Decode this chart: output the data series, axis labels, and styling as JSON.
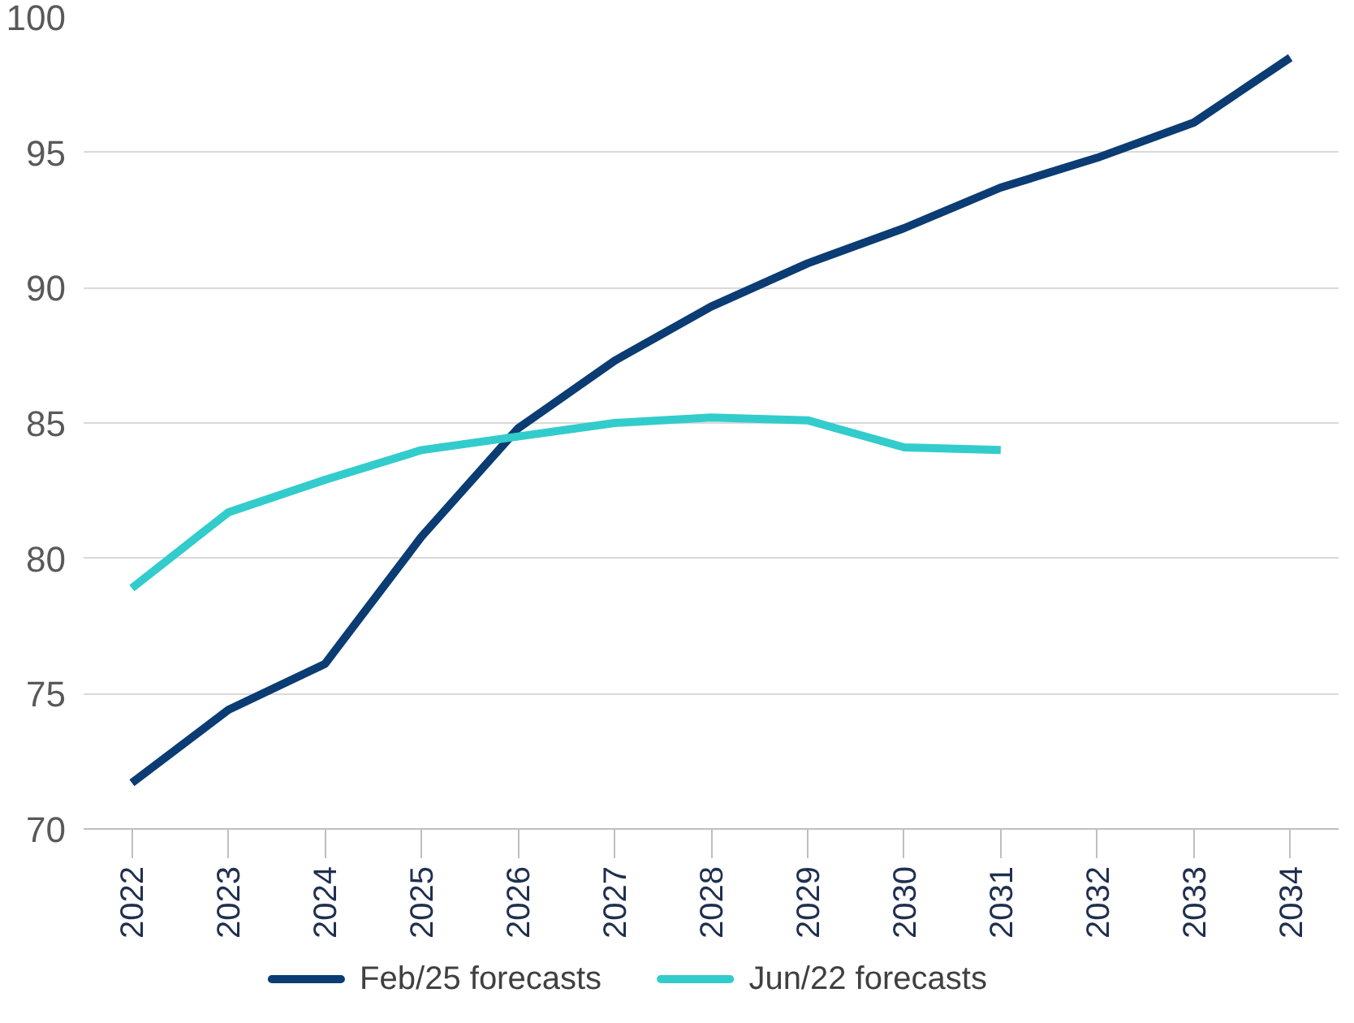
{
  "chart_data": {
    "type": "line",
    "categories": [
      "2022",
      "2023",
      "2024",
      "2025",
      "2026",
      "2027",
      "2028",
      "2029",
      "2030",
      "2031",
      "2032",
      "2033",
      "2034"
    ],
    "series": [
      {
        "name": "Feb/25 forecasts",
        "color": "#0b3c73",
        "values": [
          71.7,
          74.4,
          76.1,
          80.8,
          84.8,
          87.3,
          89.3,
          90.9,
          92.2,
          93.7,
          94.8,
          96.1,
          98.5
        ]
      },
      {
        "name": "Jun/22 forecasts",
        "color": "#33cccc",
        "values": [
          78.9,
          81.7,
          82.9,
          84.0,
          84.5,
          85.0,
          85.2,
          85.1,
          84.1,
          84.0,
          null,
          null,
          null
        ]
      }
    ],
    "ylim": [
      70,
      100
    ],
    "yticks": [
      70,
      75,
      80,
      85,
      90,
      95,
      100
    ],
    "grid": "y",
    "legend": "bottom",
    "marker": "none",
    "line_style": "solid"
  }
}
